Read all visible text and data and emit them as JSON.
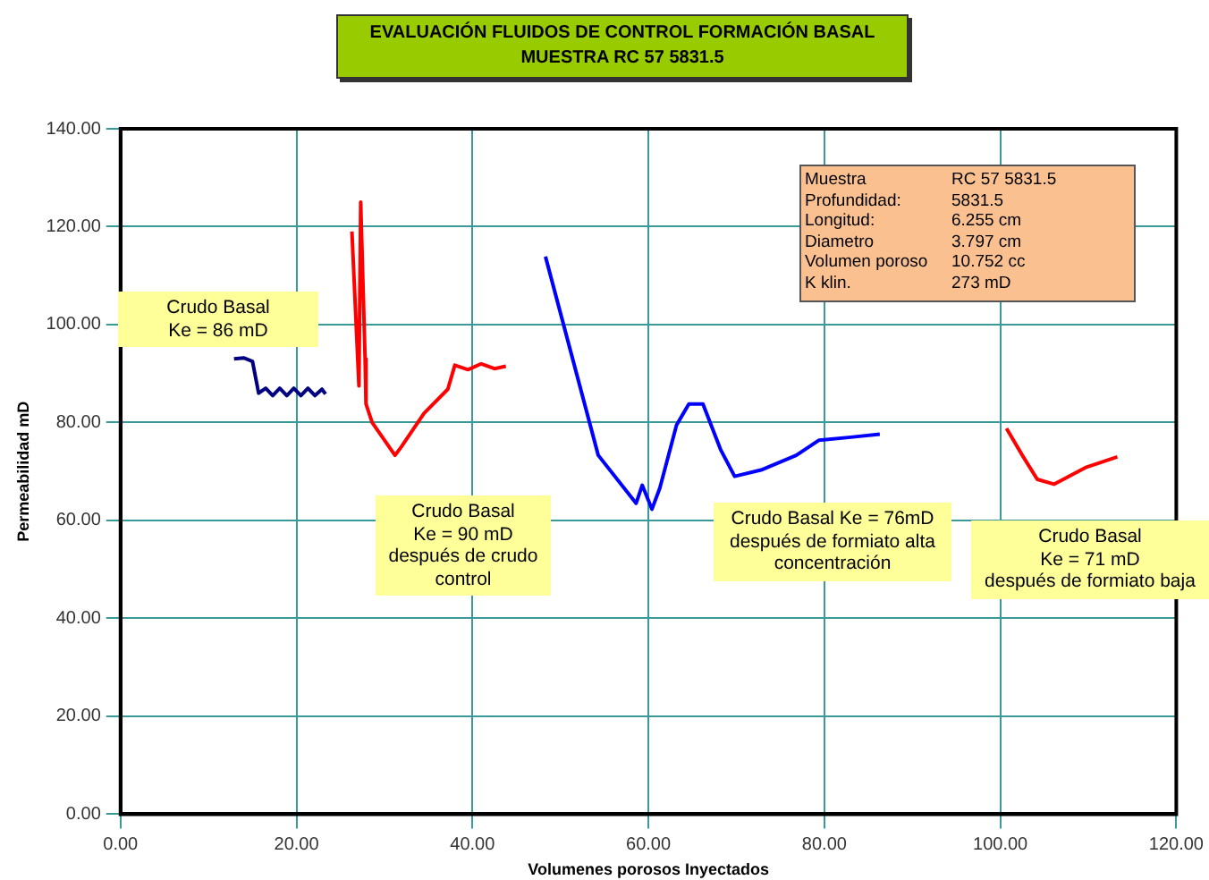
{
  "chart_data": {
    "type": "line",
    "title": "EVALUACIÓN FLUIDOS DE CONTROL FORMACIÓN BASAL",
    "subtitle": "MUESTRA RC 57 5831.5",
    "xlabel": "Volumenes porosos Inyectados",
    "ylabel": "Permeabilidad mD",
    "xlim": [
      0,
      120
    ],
    "xticks": [
      {
        "value": 0,
        "label": "0.00"
      },
      {
        "value": 20,
        "label": "20.00"
      },
      {
        "value": 40,
        "label": "40.00"
      },
      {
        "value": 60,
        "label": "60.00"
      },
      {
        "value": 80,
        "label": "80.00"
      },
      {
        "value": 100,
        "label": "100.00"
      },
      {
        "value": 120,
        "label": "120.00"
      }
    ],
    "ylim": [
      0,
      140
    ],
    "yticks": [
      {
        "value": 0,
        "label": "0.00"
      },
      {
        "value": 20,
        "label": "20.00"
      },
      {
        "value": 40,
        "label": "40.00"
      },
      {
        "value": 60,
        "label": "60.00"
      },
      {
        "value": 80,
        "label": "80.00"
      },
      {
        "value": 100,
        "label": "100.00"
      },
      {
        "value": 120,
        "label": "120.00"
      },
      {
        "value": 140,
        "label": "140.00"
      }
    ],
    "grid": true,
    "legend": false,
    "marker": "none",
    "line_style": "solid",
    "series": [
      {
        "color": "#000080",
        "x": [
          12.9,
          14,
          15,
          15.7,
          16.5,
          17.3,
          18.1,
          18.9,
          19.7,
          20.5,
          21.3,
          22.1,
          22.9,
          23.3
        ],
        "values": [
          93,
          93.2,
          92.5,
          86,
          87,
          85.5,
          87,
          85.5,
          87,
          85.5,
          87,
          85.5,
          86.8,
          85.8
        ]
      },
      {
        "color": "#ff0000",
        "x": [
          26.3,
          27.1,
          27.3,
          27.8,
          27.9,
          28.6,
          31.2,
          31.9,
          34.5,
          37.2,
          38,
          39.5,
          41,
          42.5,
          43.8
        ],
        "values": [
          119,
          87.5,
          125,
          93,
          83.8,
          80,
          73.3,
          75,
          81.9,
          86.8,
          91.7,
          90.8,
          92,
          91,
          91.5
        ]
      },
      {
        "color": "#0000ff",
        "x": [
          48.3,
          54.3,
          58.6,
          59.3,
          60.4,
          61.3,
          63.2,
          64.6,
          66.2,
          68.2,
          69.8,
          72.8,
          76.8,
          79.4,
          83,
          86.3
        ],
        "values": [
          113.9,
          73.3,
          63.5,
          67.2,
          62.3,
          66.6,
          79.5,
          83.8,
          83.8,
          74.5,
          69,
          70.3,
          73.3,
          76.4,
          77,
          77.6
        ]
      },
      {
        "color": "#ff0000",
        "x": [
          100.7,
          102.5,
          104.2,
          106.1,
          109.8,
          113.3
        ],
        "values": [
          78.8,
          73.3,
          68.4,
          67.4,
          70.9,
          73
        ]
      }
    ],
    "annotations": [
      "Crudo Basal\nKe = 86  mD",
      "Crudo Basal\nKe = 90  mD\ndespués de crudo\ncontrol",
      "Crudo Basal Ke = 76mD\ndespués de formiato alta\nconcentración",
      "Crudo Basal\nKe = 71 mD\ndespués de formiato baja",
      "Muestra\tRC 57 5831.5\nProfundidad:\t5831.5\nLongitud:\t6.255  cm\nDiametro\t3.797 cm\nVolumen poroso\t10.752 cc\nK klin.\t273 mD"
    ]
  }
}
